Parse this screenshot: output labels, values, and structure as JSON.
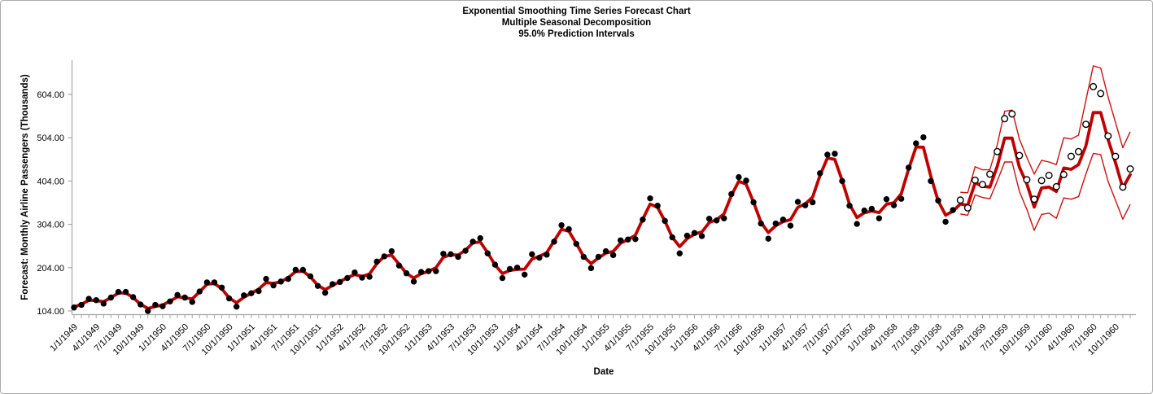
{
  "title": {
    "line1": "Exponential Smoothing Time Series Forecast Chart",
    "line2": "Multiple Seasonal Decomposition",
    "line3": "95.0% Prediction Intervals"
  },
  "y_axis": {
    "label": "Forecast: Monthly Airline Passengers (Thousands)",
    "tick_labels": [
      "104.00",
      "204.00",
      "304.00",
      "404.00",
      "504.00",
      "604.00"
    ],
    "tick_values": [
      104,
      204,
      304,
      404,
      504,
      604
    ]
  },
  "x_axis": {
    "label": "Date",
    "tick_labels": [
      "1/1/1949",
      "4/1/1949",
      "7/1/1949",
      "10/1/1949",
      "1/1/1950",
      "4/1/1950",
      "7/1/1950",
      "10/1/1950",
      "1/1/1951",
      "4/1/1951",
      "7/1/1951",
      "10/1/1951",
      "1/1/1952",
      "4/1/1952",
      "7/1/1952",
      "10/1/1952",
      "1/1/1953",
      "4/1/1953",
      "7/1/1953",
      "10/1/1953",
      "1/1/1954",
      "4/1/1954",
      "7/1/1954",
      "10/1/1954",
      "1/1/1955",
      "4/1/1955",
      "7/1/1955",
      "10/1/1955",
      "1/1/1956",
      "4/1/1956",
      "7/1/1956",
      "10/1/1956",
      "1/1/1957",
      "4/1/1957",
      "7/1/1957",
      "10/1/1957",
      "1/1/1958",
      "4/1/1958",
      "7/1/1958",
      "10/1/1958",
      "1/1/1959",
      "4/1/1959",
      "7/1/1959",
      "10/1/1959",
      "1/1/1960",
      "4/1/1960",
      "7/1/1960",
      "10/1/1960"
    ],
    "months_per_tick": 1,
    "months_per_label": 3
  },
  "colors": {
    "axis": "#a6a6a6",
    "text": "#000000",
    "forecast_line": "#c00000",
    "interval_line": "#cc1111",
    "history_dot": "#000000",
    "future_circle_stroke": "#000000",
    "future_circle_fill": "#ffffff",
    "frame_border": "#ababab"
  },
  "chart_data": {
    "type": "line",
    "title": "Exponential Smoothing Time Series Forecast Chart / Multiple Seasonal Decomposition / 95.0% Prediction Intervals",
    "xlabel": "Date",
    "ylabel": "Forecast: Monthly Airline Passengers (Thousands)",
    "ylim": [
      104,
      604
    ],
    "x_start": "1/1/1949",
    "x_end": "12/1/1960",
    "grid": false,
    "legend": "none",
    "series": [
      {
        "name": "actual-passengers-history",
        "marker": "filled-black-dot",
        "start": "1/1/1949",
        "values": [
          112,
          118,
          132,
          129,
          121,
          135,
          148,
          148,
          136,
          119,
          104,
          118,
          115,
          126,
          141,
          135,
          125,
          149,
          170,
          170,
          158,
          133,
          114,
          140,
          145,
          150,
          178,
          163,
          172,
          178,
          199,
          199,
          184,
          162,
          146,
          166,
          171,
          180,
          193,
          181,
          183,
          218,
          230,
          242,
          209,
          191,
          172,
          194,
          196,
          196,
          236,
          235,
          229,
          243,
          264,
          272,
          237,
          211,
          180,
          201,
          204,
          188,
          235,
          227,
          234,
          264,
          302,
          293,
          259,
          229,
          203,
          229,
          242,
          233,
          267,
          269,
          270,
          315,
          364,
          347,
          312,
          274,
          237,
          278,
          284,
          277,
          317,
          313,
          318,
          374,
          413,
          405,
          355,
          306,
          271,
          306,
          315,
          301,
          356,
          348,
          355,
          422,
          465,
          467,
          404,
          347,
          305,
          336,
          340,
          318,
          362,
          348,
          363,
          435,
          491,
          505,
          404,
          359,
          310,
          337
        ]
      },
      {
        "name": "actual-passengers-forecast-period",
        "marker": "open-circle",
        "start": "1/1/1959",
        "values": [
          360,
          342,
          406,
          396,
          420,
          472,
          548,
          559,
          463,
          407,
          362,
          405,
          417,
          391,
          419,
          461,
          472,
          535,
          622,
          606,
          508,
          461,
          390,
          432
        ]
      },
      {
        "name": "forecast",
        "marker": "thick-red-line",
        "note": "thick red line follows fitted values through 12/1958 then these forecasts",
        "start": "1/1/1959",
        "values": [
          351,
          348,
          400,
          392,
          390,
          438,
          503,
          503,
          436,
          398,
          344,
          388,
          390,
          380,
          434,
          431,
          442,
          485,
          562,
          562,
          500,
          447,
          388,
          419
        ]
      },
      {
        "name": "upper-95pct-prediction-interval",
        "marker": "thin-red-line",
        "start": "1/1/1959",
        "values": [
          378,
          377,
          437,
          430,
          430,
          488,
          565,
          568,
          501,
          459,
          420,
          452,
          448,
          442,
          504,
          501,
          510,
          590,
          670,
          665,
          598,
          540,
          481,
          518
        ]
      },
      {
        "name": "lower-95pct-prediction-interval",
        "marker": "thin-red-line",
        "start": "1/1/1959",
        "values": [
          328,
          325,
          372,
          366,
          363,
          404,
          448,
          448,
          380,
          339,
          290,
          327,
          330,
          318,
          365,
          362,
          368,
          420,
          468,
          465,
          403,
          360,
          316,
          350
        ]
      }
    ]
  }
}
